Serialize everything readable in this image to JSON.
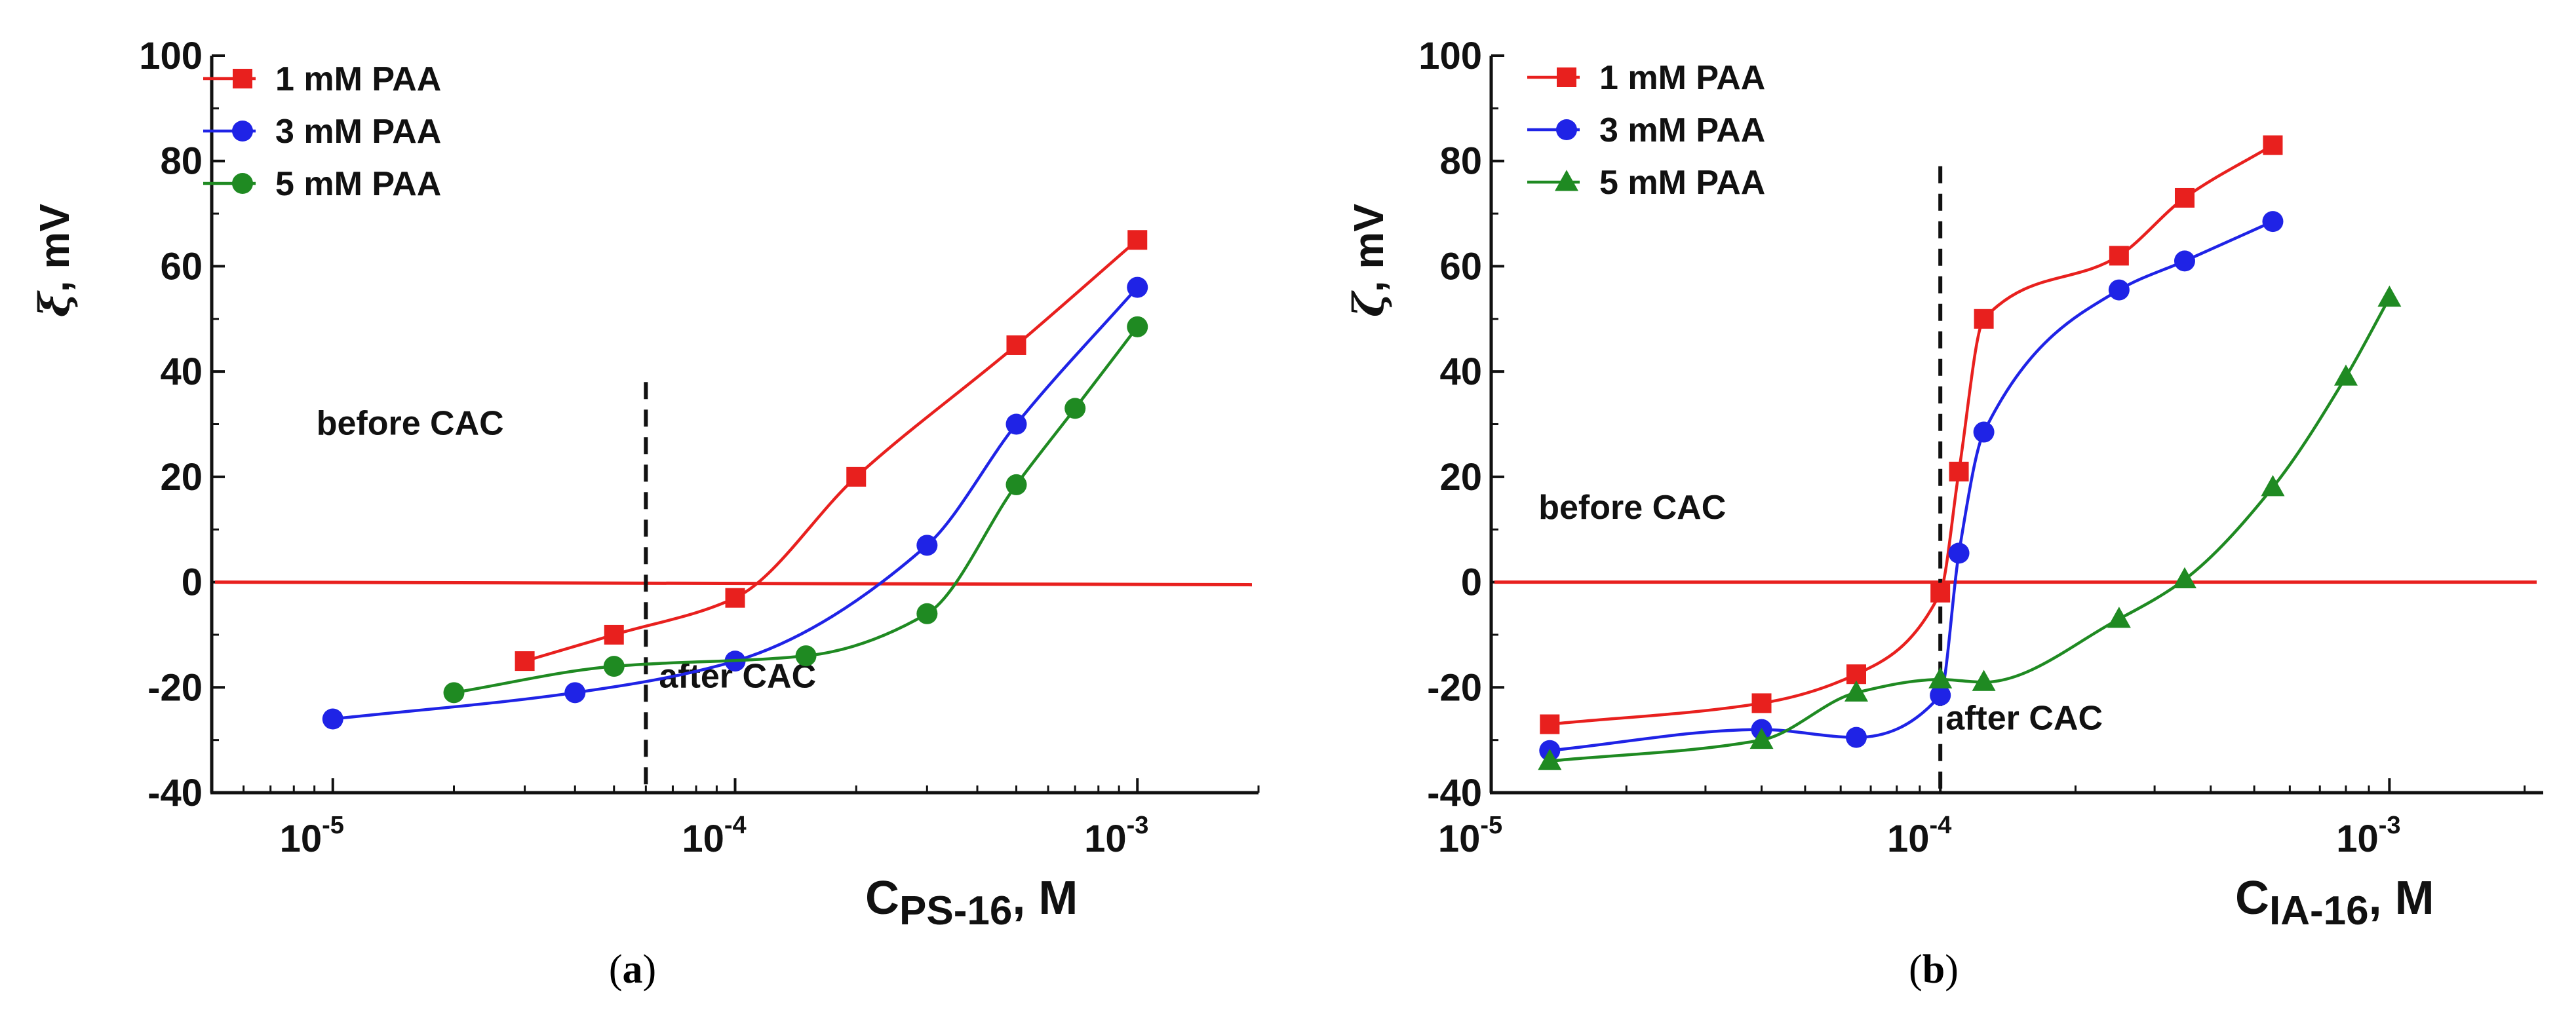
{
  "chart_data": [
    {
      "panel": "(a)",
      "panel_letter": "a",
      "type": "line",
      "xscale": "log",
      "xlim": [
        5e-06,
        0.002
      ],
      "ylim": [
        -40,
        100
      ],
      "yticks": [
        -40,
        -20,
        0,
        20,
        40,
        60,
        80,
        100
      ],
      "xticks": [
        1e-05,
        0.0001,
        0.001
      ],
      "xtick_labels": [
        {
          "base": "10",
          "exp": "-5"
        },
        {
          "base": "10",
          "exp": "-4"
        },
        {
          "base": "10",
          "exp": "-3"
        }
      ],
      "ylabel": {
        "symbol": "ξ",
        "rest": ", mV"
      },
      "xlabel": {
        "main": "C",
        "sub": "PS-16",
        "rest": ", M"
      },
      "cac_x": 6e-05,
      "zero_line": 0,
      "annotations": {
        "before": "before CAC",
        "after": "after CAC"
      },
      "series": [
        {
          "name": "1 mM PAA",
          "color": "#e8201e",
          "marker": "square",
          "points": [
            [
              3e-05,
              -15
            ],
            [
              5e-05,
              -10
            ],
            [
              0.0001,
              -3
            ],
            [
              0.0002,
              20
            ],
            [
              0.0005,
              45
            ],
            [
              0.001,
              65
            ]
          ]
        },
        {
          "name": "3 mM PAA",
          "color": "#1f23e6",
          "marker": "circle",
          "points": [
            [
              1e-05,
              -26
            ],
            [
              4e-05,
              -21
            ],
            [
              0.0001,
              -15
            ],
            [
              0.0003,
              7
            ],
            [
              0.0005,
              30
            ],
            [
              0.001,
              56
            ]
          ]
        },
        {
          "name": "5 mM PAA",
          "color": "#1f8a22",
          "marker": "circle",
          "points": [
            [
              2e-05,
              -21
            ],
            [
              5e-05,
              -16
            ],
            [
              0.00015,
              -14
            ],
            [
              0.0003,
              -6
            ],
            [
              0.0005,
              18.5
            ],
            [
              0.0007,
              33
            ],
            [
              0.001,
              48.5
            ]
          ]
        }
      ]
    },
    {
      "panel": "(b)",
      "panel_letter": "b",
      "type": "line",
      "xscale": "log",
      "xlim": [
        1e-05,
        0.0022
      ],
      "ylim": [
        -40,
        100
      ],
      "yticks": [
        -40,
        -20,
        0,
        20,
        40,
        60,
        80,
        100
      ],
      "xticks": [
        1e-05,
        0.0001,
        0.001
      ],
      "xtick_labels": [
        {
          "base": "10",
          "exp": "-5"
        },
        {
          "base": "10",
          "exp": "-4"
        },
        {
          "base": "10",
          "exp": "-3"
        }
      ],
      "ylabel": {
        "symbol": "ζ",
        "rest": ", mV"
      },
      "xlabel": {
        "main": "C",
        "sub": "IA-16",
        "rest": ", M"
      },
      "cac_x": 0.0001,
      "zero_line": 0,
      "annotations": {
        "before": "before CAC",
        "after": "after CAC"
      },
      "series": [
        {
          "name": "1 mM PAA",
          "color": "#e8201e",
          "marker": "square",
          "points": [
            [
              1.35e-05,
              -27
            ],
            [
              4e-05,
              -23
            ],
            [
              6.5e-05,
              -17.5
            ],
            [
              0.0001,
              -2
            ],
            [
              0.00011,
              21
            ],
            [
              0.000125,
              50
            ],
            [
              0.00025,
              62
            ],
            [
              0.00035,
              73
            ],
            [
              0.00055,
              83
            ]
          ]
        },
        {
          "name": "3 mM PAA",
          "color": "#1f23e6",
          "marker": "circle",
          "points": [
            [
              1.35e-05,
              -32
            ],
            [
              4e-05,
              -28
            ],
            [
              6.5e-05,
              -29.5
            ],
            [
              0.0001,
              -21.5
            ],
            [
              0.00011,
              5.5
            ],
            [
              0.000125,
              28.5
            ],
            [
              0.00025,
              55.5
            ],
            [
              0.00035,
              61
            ],
            [
              0.00055,
              68.5
            ]
          ]
        },
        {
          "name": "5 mM PAA",
          "color": "#1f8a22",
          "marker": "triangle",
          "points": [
            [
              1.35e-05,
              -34
            ],
            [
              4e-05,
              -30
            ],
            [
              6.5e-05,
              -21
            ],
            [
              0.0001,
              -18.5
            ],
            [
              0.000125,
              -19
            ],
            [
              0.00025,
              -7
            ],
            [
              0.00035,
              0.5
            ],
            [
              0.00055,
              18
            ],
            [
              0.0008,
              39
            ],
            [
              0.001,
              54
            ]
          ]
        }
      ]
    }
  ]
}
